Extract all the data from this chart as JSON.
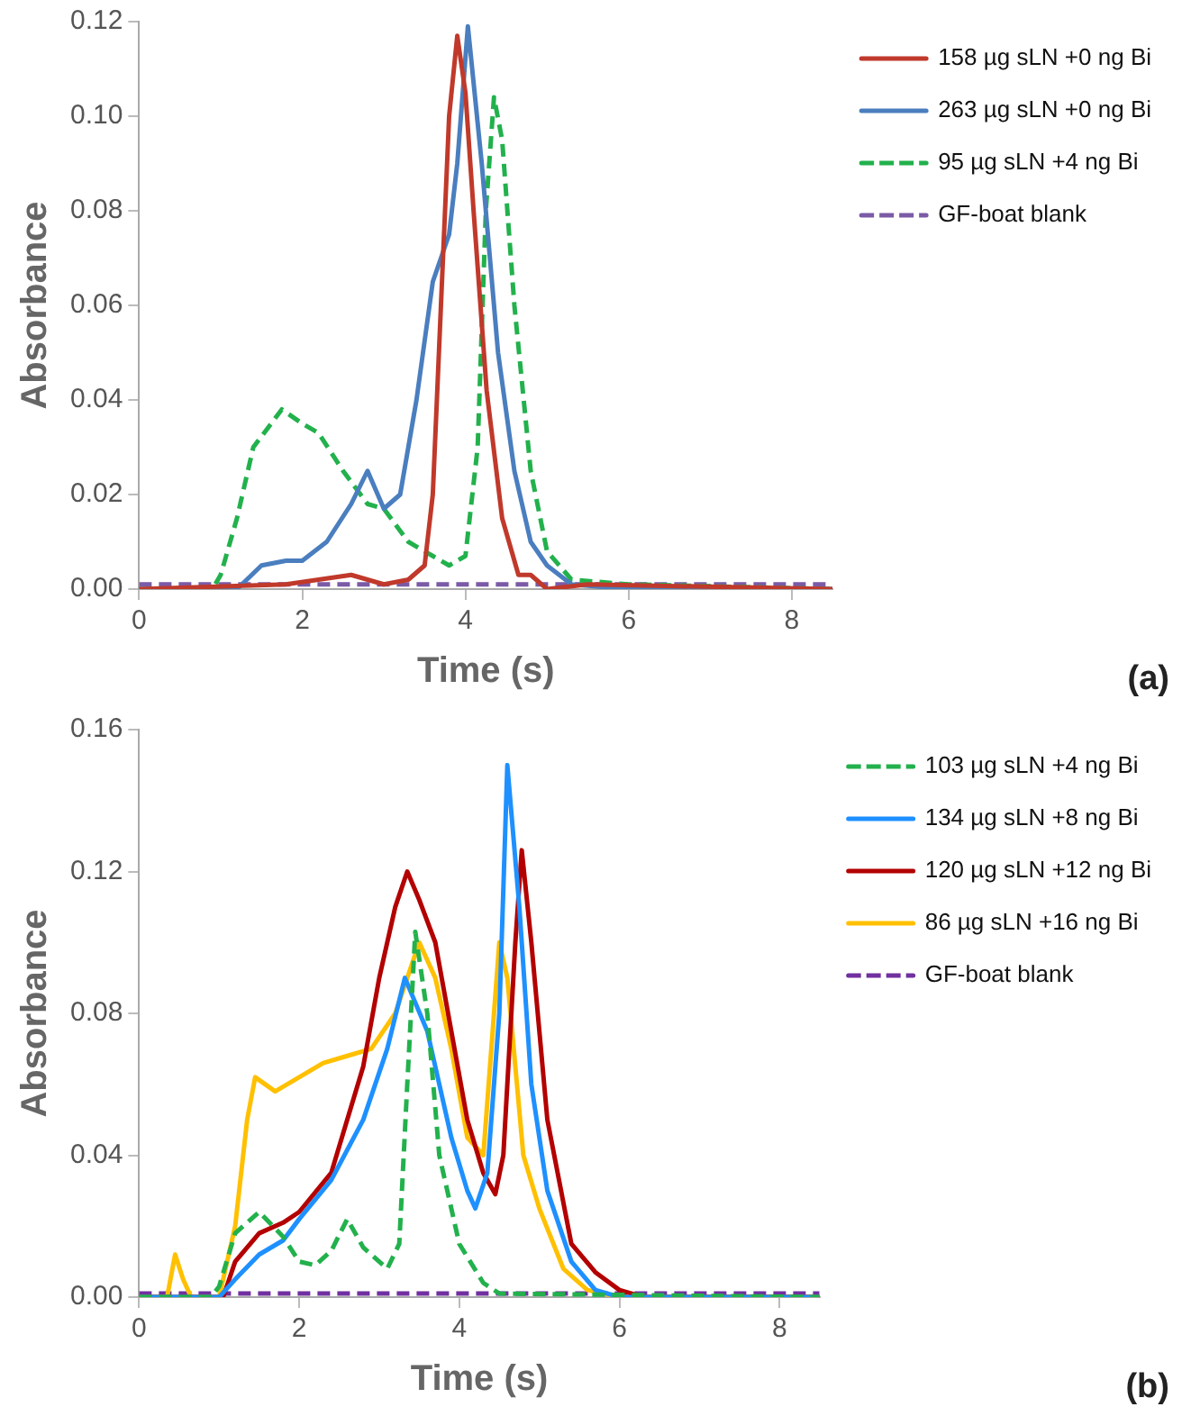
{
  "chart_data": [
    {
      "type": "line",
      "xlabel": "Time (s)",
      "ylabel": "Absorbance",
      "annotations": [
        "(a)"
      ],
      "xlim": [
        0,
        8.5
      ],
      "xticks": [
        0,
        2,
        4,
        6,
        8
      ],
      "ylim": [
        0,
        0.12
      ],
      "yticks": [
        {
          "value": 0,
          "label": "0.00"
        },
        {
          "value": 0.02,
          "label": "0.02"
        },
        {
          "value": 0.04,
          "label": "0.04"
        },
        {
          "value": 0.06,
          "label": "0.06"
        },
        {
          "value": 0.08,
          "label": "0.08"
        },
        {
          "value": 0.1,
          "label": "0.10"
        },
        {
          "value": 0.12,
          "label": "0.12"
        }
      ],
      "grid": false,
      "legend": "top right",
      "marker": "none",
      "series": [
        {
          "name": "158 µg sLN +0 ng Bi",
          "color": "#c0392b",
          "line_style": "solid",
          "x": [
            0,
            1.8,
            2.2,
            2.6,
            3.0,
            3.3,
            3.5,
            3.6,
            3.7,
            3.8,
            3.9,
            4.0,
            4.1,
            4.26,
            4.45,
            4.65,
            4.8,
            5.0,
            5.5,
            8.5
          ],
          "values": [
            0,
            0.001,
            0.002,
            0.003,
            0.001,
            0.002,
            0.005,
            0.02,
            0.06,
            0.1,
            0.117,
            0.105,
            0.08,
            0.042,
            0.015,
            0.003,
            0.003,
            0,
            0.001,
            0
          ]
        },
        {
          "name": "263 µg sLN +0 ng Bi",
          "color": "#4a7ebf",
          "line_style": "solid",
          "x": [
            0,
            1.2,
            1.5,
            1.8,
            2.0,
            2.3,
            2.6,
            2.8,
            3.0,
            3.2,
            3.4,
            3.6,
            3.8,
            3.9,
            4.03,
            4.2,
            4.4,
            4.6,
            4.8,
            5.0,
            5.3,
            6,
            8.5
          ],
          "values": [
            0,
            0,
            0.005,
            0.006,
            0.006,
            0.01,
            0.018,
            0.025,
            0.017,
            0.02,
            0.04,
            0.065,
            0.075,
            0.09,
            0.119,
            0.09,
            0.05,
            0.025,
            0.01,
            0.005,
            0.001,
            0,
            0
          ]
        },
        {
          "name": "95 µg sLN +4 ng Bi",
          "color": "#22b14c",
          "line_style": "dashed",
          "x": [
            0,
            0.9,
            1.0,
            1.2,
            1.4,
            1.75,
            2.0,
            2.2,
            2.5,
            2.8,
            3.0,
            3.3,
            3.6,
            3.8,
            4.0,
            4.15,
            4.25,
            4.35,
            4.45,
            4.6,
            4.8,
            5.0,
            5.3,
            6,
            8.5
          ],
          "values": [
            0,
            0,
            0.003,
            0.015,
            0.03,
            0.038,
            0.035,
            0.033,
            0.025,
            0.018,
            0.017,
            0.01,
            0.007,
            0.005,
            0.007,
            0.03,
            0.08,
            0.104,
            0.095,
            0.06,
            0.025,
            0.008,
            0.002,
            0.001,
            0
          ]
        },
        {
          "name": "GF-boat blank",
          "color": "#7b5aa6",
          "line_style": "dashed",
          "x": [
            0,
            8.5
          ],
          "values": [
            0.001,
            0.001
          ]
        }
      ]
    },
    {
      "type": "line",
      "xlabel": "Time (s)",
      "ylabel": "Absorbance",
      "annotations": [
        "(b)"
      ],
      "xlim": [
        0,
        8.5
      ],
      "xticks": [
        0,
        2,
        4,
        6,
        8
      ],
      "ylim": [
        0,
        0.16
      ],
      "yticks": [
        {
          "value": 0,
          "label": "0.00"
        },
        {
          "value": 0.04,
          "label": "0.04"
        },
        {
          "value": 0.08,
          "label": "0.08"
        },
        {
          "value": 0.12,
          "label": "0.12"
        },
        {
          "value": 0.16,
          "label": "0.16"
        }
      ],
      "grid": false,
      "legend": "top right",
      "marker": "none",
      "series": [
        {
          "name": "103 µg sLN +4 ng Bi",
          "color": "#22b14c",
          "line_style": "dashed",
          "x": [
            0,
            0.9,
            1.0,
            1.2,
            1.5,
            1.8,
            2.0,
            2.2,
            2.4,
            2.6,
            2.8,
            3.1,
            3.25,
            3.35,
            3.45,
            3.6,
            3.75,
            4.0,
            4.3,
            4.5,
            8.5
          ],
          "values": [
            0,
            0,
            0.003,
            0.018,
            0.024,
            0.017,
            0.01,
            0.009,
            0.013,
            0.022,
            0.014,
            0.008,
            0.015,
            0.06,
            0.103,
            0.08,
            0.04,
            0.015,
            0.004,
            0.001,
            0
          ]
        },
        {
          "name": "134 µg sLN +8 ng Bi",
          "color": "#1e90ff",
          "line_style": "solid",
          "x": [
            0,
            1.0,
            1.2,
            1.5,
            1.8,
            2.0,
            2.4,
            2.8,
            3.1,
            3.32,
            3.6,
            3.9,
            4.1,
            4.2,
            4.35,
            4.5,
            4.6,
            4.75,
            4.9,
            5.1,
            5.4,
            5.7,
            6,
            8.5
          ],
          "values": [
            0,
            0,
            0.005,
            0.012,
            0.016,
            0.022,
            0.033,
            0.05,
            0.07,
            0.09,
            0.075,
            0.045,
            0.03,
            0.025,
            0.035,
            0.08,
            0.15,
            0.11,
            0.06,
            0.03,
            0.01,
            0.002,
            0,
            0
          ]
        },
        {
          "name": "120 µg sLN +12 ng Bi",
          "color": "#b30000",
          "line_style": "solid",
          "x": [
            0,
            1.05,
            1.2,
            1.5,
            1.8,
            2.0,
            2.4,
            2.8,
            3.0,
            3.2,
            3.35,
            3.5,
            3.7,
            3.9,
            4.1,
            4.3,
            4.45,
            4.55,
            4.7,
            4.78,
            4.9,
            5.1,
            5.4,
            5.7,
            6.0,
            6.3,
            8.5
          ],
          "values": [
            0,
            0,
            0.01,
            0.018,
            0.021,
            0.024,
            0.035,
            0.065,
            0.09,
            0.11,
            0.12,
            0.112,
            0.1,
            0.075,
            0.05,
            0.035,
            0.029,
            0.04,
            0.1,
            0.126,
            0.1,
            0.05,
            0.015,
            0.007,
            0.002,
            0,
            0
          ]
        },
        {
          "name": "86 µg sLN +16 ng Bi",
          "color": "#ffc000",
          "line_style": "solid",
          "x": [
            0,
            0.35,
            0.45,
            0.55,
            0.65,
            1.0,
            1.2,
            1.35,
            1.45,
            1.7,
            2.0,
            2.3,
            2.6,
            2.9,
            3.2,
            3.5,
            3.7,
            3.9,
            4.1,
            4.3,
            4.5,
            4.6,
            4.8,
            5.0,
            5.3,
            5.6,
            6,
            8.5
          ],
          "values": [
            0,
            0,
            0.012,
            0.005,
            0,
            0,
            0.02,
            0.05,
            0.062,
            0.058,
            0.062,
            0.066,
            0.068,
            0.07,
            0.08,
            0.1,
            0.09,
            0.07,
            0.045,
            0.04,
            0.1,
            0.09,
            0.04,
            0.025,
            0.008,
            0.002,
            0,
            0
          ]
        },
        {
          "name": "GF-boat blank",
          "color": "#7030a0",
          "line_style": "dashed",
          "x": [
            0,
            8.5
          ],
          "values": [
            0.001,
            0.001
          ]
        }
      ]
    }
  ]
}
